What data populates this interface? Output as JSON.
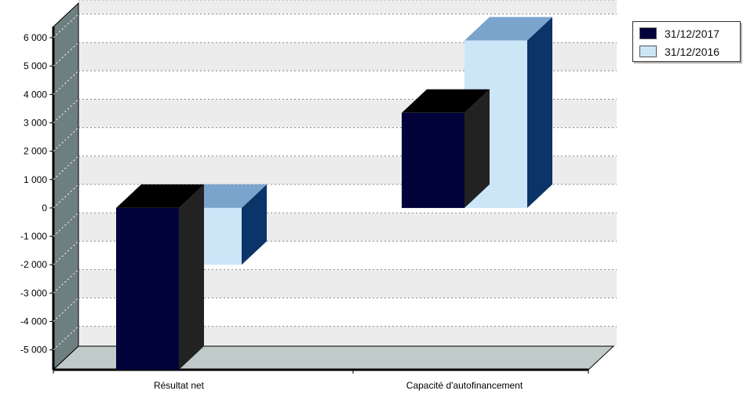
{
  "chart_data": {
    "type": "bar",
    "three_d": true,
    "categories": [
      "Résultat net",
      "Capacité d'autofinancement"
    ],
    "series": [
      {
        "name": "31/12/2017",
        "values": [
          -5700,
          3350
        ]
      },
      {
        "name": "31/12/2016",
        "values": [
          -2000,
          5900
        ]
      }
    ],
    "y_ticks": [
      {
        "value": 6000,
        "label": "6 000"
      },
      {
        "value": 5000,
        "label": "5 000"
      },
      {
        "value": 4000,
        "label": "4 000"
      },
      {
        "value": 3000,
        "label": "3 000"
      },
      {
        "value": 2000,
        "label": "2 000"
      },
      {
        "value": 1000,
        "label": "1 000"
      },
      {
        "value": 0,
        "label": "0"
      },
      {
        "value": -1000,
        "label": "-1 000"
      },
      {
        "value": -2000,
        "label": "-2 000"
      },
      {
        "value": -3000,
        "label": "-3 000"
      },
      {
        "value": -4000,
        "label": "-4 000"
      },
      {
        "value": -5000,
        "label": "-5 000"
      }
    ],
    "ylim": [
      -5700,
      6000
    ],
    "grid": true,
    "legend_position": "top-right"
  },
  "colors": {
    "series_2017": "#02023a",
    "series_2017_top": "#000000",
    "series_2017_side": "#222222",
    "series_2016": "#cce6f8",
    "series_2016_top": "#7aa4cc",
    "series_2016_side": "#0b3468",
    "wall": "#6e7f7f",
    "floor": "#bfcac9",
    "band": "#ececec"
  }
}
